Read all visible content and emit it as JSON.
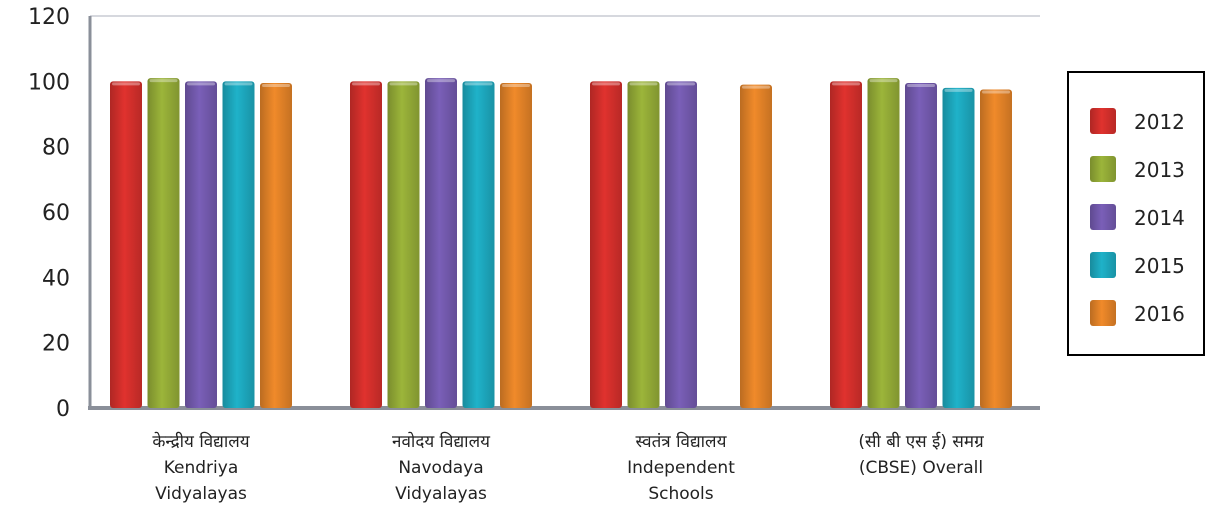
{
  "chart_data": {
    "type": "bar",
    "categories": [
      [
        "केन्द्रीय विद्यालय",
        "Kendriya",
        "Vidyalayas"
      ],
      [
        "नवोदय विद्यालय",
        "Navodaya",
        "Vidyalayas"
      ],
      [
        "स्वतंत्र विद्यालय",
        "Independent",
        "Schools"
      ],
      [
        "(सी बी एस ई) समग्र",
        "(CBSE) Overall"
      ]
    ],
    "series": [
      {
        "name": "2012",
        "color": "#e0322e",
        "values": [
          100,
          100,
          100,
          100
        ]
      },
      {
        "name": "2013",
        "color": "#9cb53a",
        "values": [
          101,
          100,
          100,
          101
        ]
      },
      {
        "name": "2014",
        "color": "#7a5fb8",
        "values": [
          100,
          101,
          100,
          99.5
        ]
      },
      {
        "name": "2015",
        "color": "#1fb2c9",
        "values": [
          100,
          100,
          null,
          98
        ]
      },
      {
        "name": "2016",
        "color": "#f08a2a",
        "values": [
          99.5,
          99.5,
          99,
          97.5
        ]
      }
    ],
    "ylim": [
      0,
      120
    ],
    "yticks": [
      0,
      20,
      40,
      60,
      80,
      100,
      120
    ],
    "grid": false,
    "legend": "right",
    "title": "",
    "xlabel": "",
    "ylabel": ""
  }
}
